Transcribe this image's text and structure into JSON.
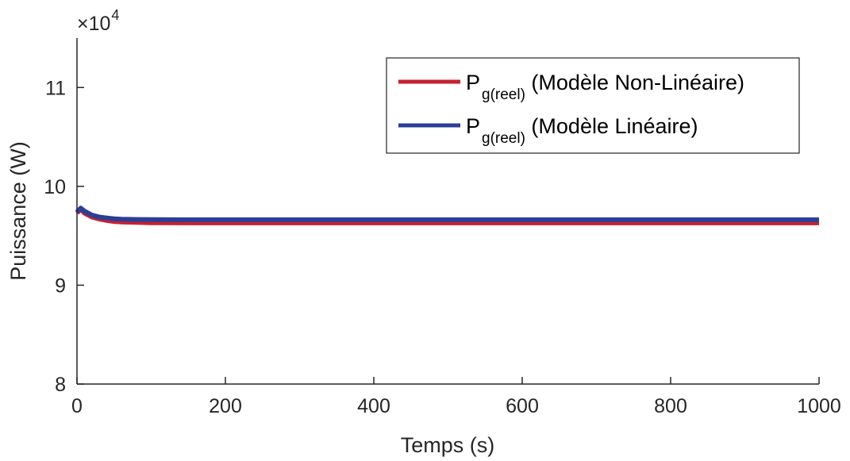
{
  "chart_data": {
    "type": "line",
    "xlabel": "Temps (s)",
    "ylabel": "Puissance (W)",
    "y_exponent_label": "×10",
    "y_exponent_power": "4",
    "xlim": [
      0,
      1000
    ],
    "ylim": [
      80000,
      115000
    ],
    "x_ticks": [
      0,
      200,
      400,
      600,
      800,
      1000
    ],
    "x_tick_labels": [
      "0",
      "200",
      "400",
      "600",
      "800",
      "1000"
    ],
    "y_ticks": [
      80000,
      90000,
      100000,
      110000
    ],
    "y_tick_labels": [
      "8",
      "9",
      "10",
      "11"
    ],
    "grid": false,
    "legend_position": "top-right",
    "series": [
      {
        "name": "P",
        "subscript": "g(reel)",
        "suffix": " (Modèle Non-Linéaire)",
        "color": "#c8202f",
        "x": [
          0,
          5,
          10,
          20,
          30,
          40,
          50,
          60,
          80,
          100,
          150,
          200,
          300,
          400,
          500,
          600,
          700,
          800,
          900,
          1000
        ],
        "y": [
          97300,
          97700,
          97300,
          96900,
          96700,
          96550,
          96450,
          96400,
          96350,
          96320,
          96300,
          96300,
          96300,
          96300,
          96300,
          96300,
          96300,
          96300,
          96300,
          96300
        ]
      },
      {
        "name": "P",
        "subscript": "g(reel)",
        "suffix": " (Modèle Linéaire)",
        "color": "#2b3f96",
        "x": [
          0,
          5,
          10,
          20,
          30,
          40,
          50,
          60,
          80,
          100,
          150,
          200,
          300,
          400,
          500,
          600,
          700,
          800,
          900,
          1000
        ],
        "y": [
          97400,
          97800,
          97500,
          97100,
          96900,
          96800,
          96720,
          96680,
          96650,
          96630,
          96620,
          96620,
          96620,
          96620,
          96620,
          96620,
          96620,
          96620,
          96620,
          96620
        ]
      }
    ]
  }
}
